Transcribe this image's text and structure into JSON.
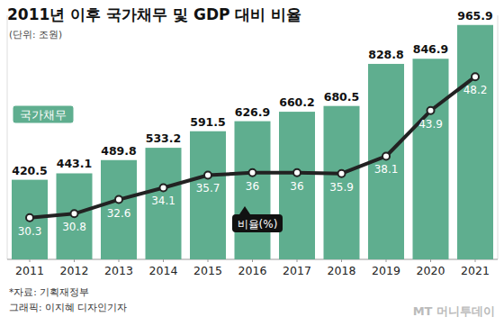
{
  "chart_data": {
    "type": "bar",
    "title": "2011년 이후 국가채무 및 GDP 대비 비율",
    "subtitle": "(단위: 조원)",
    "categories": [
      "2011",
      "2012",
      "2013",
      "2014",
      "2015",
      "2016",
      "2017",
      "2018",
      "2019",
      "2020",
      "2021"
    ],
    "series": [
      {
        "name": "국가채무",
        "type": "bar",
        "color": "#5fae8f",
        "values": [
          420.5,
          443.1,
          489.8,
          533.2,
          591.5,
          626.9,
          660.2,
          680.5,
          828.8,
          846.9,
          965.9
        ]
      },
      {
        "name": "비율(%)",
        "type": "line",
        "axis": "y2",
        "color": "#222222",
        "marker": "circle",
        "values": [
          30.3,
          30.8,
          32.6,
          34.1,
          35.7,
          36,
          36,
          35.9,
          38.1,
          43.9,
          48.2
        ]
      }
    ],
    "ylim": [
      140,
      1000
    ],
    "yticks": [],
    "y2lim": [
      25,
      56
    ],
    "y2ticks": [],
    "tick_labels": "x",
    "grid": false,
    "data_labels": true,
    "annotations": [
      "*자료: 기획재정부",
      "그래픽: 이지혜 디자인기자",
      "MT 머니투데이"
    ]
  }
}
